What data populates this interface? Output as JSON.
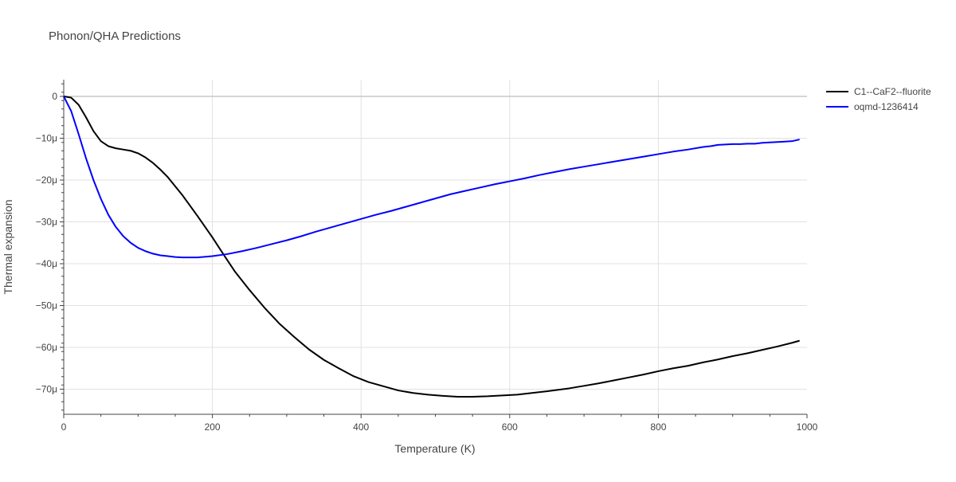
{
  "chart_data": {
    "type": "line",
    "title": "Phonon/QHA Predictions",
    "xlabel": "Temperature (K)",
    "ylabel": "Thermal expansion",
    "xlim": [
      0,
      1000
    ],
    "ylim": [
      -76,
      4
    ],
    "x_ticks": [
      0,
      200,
      400,
      600,
      800,
      1000
    ],
    "y_ticks": [
      0,
      -10,
      -20,
      -30,
      -40,
      -50,
      -60,
      -70
    ],
    "y_tick_labels": [
      "0",
      "−10μ",
      "−20μ",
      "−30μ",
      "−40μ",
      "−50μ",
      "−60μ",
      "−70μ"
    ],
    "y_unit": "μ (×1e-6)",
    "grid": true,
    "legend_position": "top-right",
    "series": [
      {
        "name": "C1--CaF2--fluorite",
        "color": "#000000",
        "x": [
          0,
          10,
          20,
          30,
          40,
          50,
          60,
          70,
          80,
          90,
          100,
          110,
          120,
          130,
          140,
          160,
          180,
          200,
          215,
          230,
          250,
          270,
          290,
          310,
          330,
          350,
          370,
          390,
          410,
          430,
          450,
          470,
          490,
          510,
          530,
          550,
          570,
          590,
          610,
          630,
          650,
          680,
          700,
          720,
          740,
          760,
          780,
          800,
          820,
          840,
          860,
          880,
          900,
          920,
          940,
          960,
          980,
          990
        ],
        "y": [
          0,
          -0.3,
          -2,
          -5,
          -8.3,
          -10.7,
          -11.9,
          -12.4,
          -12.7,
          -13,
          -13.6,
          -14.6,
          -15.9,
          -17.5,
          -19.3,
          -23.7,
          -28.6,
          -33.7,
          -37.8,
          -41.8,
          -46.3,
          -50.5,
          -54.3,
          -57.5,
          -60.5,
          -63,
          -65,
          -66.9,
          -68.3,
          -69.3,
          -70.3,
          -70.9,
          -71.3,
          -71.6,
          -71.8,
          -71.8,
          -71.7,
          -71.5,
          -71.3,
          -70.9,
          -70.5,
          -69.8,
          -69.2,
          -68.6,
          -67.9,
          -67.2,
          -66.5,
          -65.7,
          -65,
          -64.4,
          -63.6,
          -62.9,
          -62.1,
          -61.4,
          -60.6,
          -59.8,
          -58.9,
          -58.4
        ]
      },
      {
        "name": "oqmd-1236414",
        "color": "#0000ff",
        "x": [
          0,
          10,
          20,
          30,
          40,
          50,
          60,
          70,
          80,
          90,
          100,
          110,
          120,
          130,
          140,
          150,
          160,
          180,
          200,
          220,
          240,
          260,
          280,
          300,
          320,
          340,
          360,
          380,
          400,
          420,
          440,
          460,
          480,
          500,
          520,
          540,
          560,
          580,
          600,
          620,
          640,
          660,
          680,
          700,
          720,
          740,
          760,
          780,
          800,
          820,
          840,
          860,
          870,
          880,
          900,
          910,
          920,
          930,
          940,
          950,
          960,
          970,
          980,
          990
        ],
        "y": [
          0,
          -3.5,
          -9,
          -14.8,
          -20,
          -24.5,
          -28.3,
          -31.2,
          -33.4,
          -35,
          -36.2,
          -37,
          -37.6,
          -38,
          -38.2,
          -38.4,
          -38.5,
          -38.5,
          -38.2,
          -37.7,
          -37,
          -36.2,
          -35.3,
          -34.4,
          -33.4,
          -32.3,
          -31.3,
          -30.3,
          -29.3,
          -28.3,
          -27.4,
          -26.4,
          -25.4,
          -24.4,
          -23.4,
          -22.6,
          -21.8,
          -21,
          -20.3,
          -19.6,
          -18.8,
          -18.1,
          -17.4,
          -16.8,
          -16.2,
          -15.6,
          -15,
          -14.4,
          -13.8,
          -13.2,
          -12.7,
          -12.1,
          -11.9,
          -11.6,
          -11.4,
          -11.4,
          -11.3,
          -11.3,
          -11.1,
          -11,
          -10.9,
          -10.8,
          -10.7,
          -10.3
        ]
      }
    ]
  }
}
